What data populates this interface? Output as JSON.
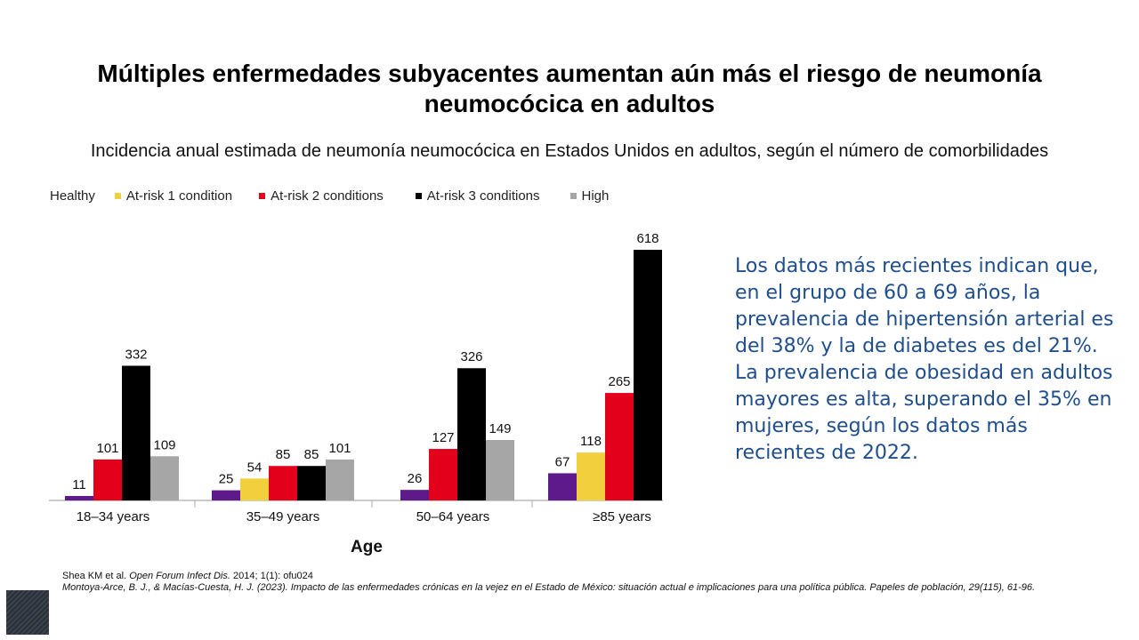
{
  "slide": {
    "title": "Múltiples enfermedades subyacentes aumentan aún más el riesgo de neumonía neumocócica en adultos",
    "subtitle": "Incidencia anual estimada de neumonía neumocócica en Estados Unidos en adultos, según el número de comorbilidades",
    "side_text": "Los datos más recientes indican que, en el grupo de 60 a 69 años, la prevalencia de hipertensión arterial es del 38% y la de diabetes es del 21%. La prevalencia de obesidad en adultos mayores es alta, superando el 35% en mujeres, según los datos más recientes de 2022.",
    "ref1_plain": "Shea KM et al. ",
    "ref1_journal": "Open Forum Infect Dis.",
    "ref1_rest": " 2014; 1(1): ofu024",
    "ref2": "Montoya-Arce, B. J., & Macías-Cuesta, H. J. (2023). Impacto de las enfermedades crónicas en la vejez en el Estado de México: situación actual e implicaciones para una política pública. Papeles de población, 29(115), 61-96."
  },
  "chart_data": {
    "type": "bar",
    "title": "",
    "xlabel": "Age",
    "ylabel": "",
    "categories": [
      "18–34 years",
      "35–49 years",
      "50–64 years",
      "≥85 years"
    ],
    "legend_position": "top",
    "grid": false,
    "series": [
      {
        "name": "Healthy",
        "color": "#5e1a8a",
        "values": [
          11,
          25,
          26,
          67
        ]
      },
      {
        "name": "At-risk 1 condition",
        "color": "#f2cf3c",
        "values": [
          null,
          54,
          null,
          118
        ]
      },
      {
        "name": "At-risk 2 conditions",
        "color": "#e3001b",
        "values": [
          101,
          85,
          127,
          265
        ]
      },
      {
        "name": "At-risk 3 conditions",
        "color": "#000000",
        "values": [
          332,
          85,
          326,
          618
        ]
      },
      {
        "name": "High",
        "color": "#a6a6a6",
        "values": [
          109,
          101,
          149,
          null
        ]
      }
    ]
  }
}
